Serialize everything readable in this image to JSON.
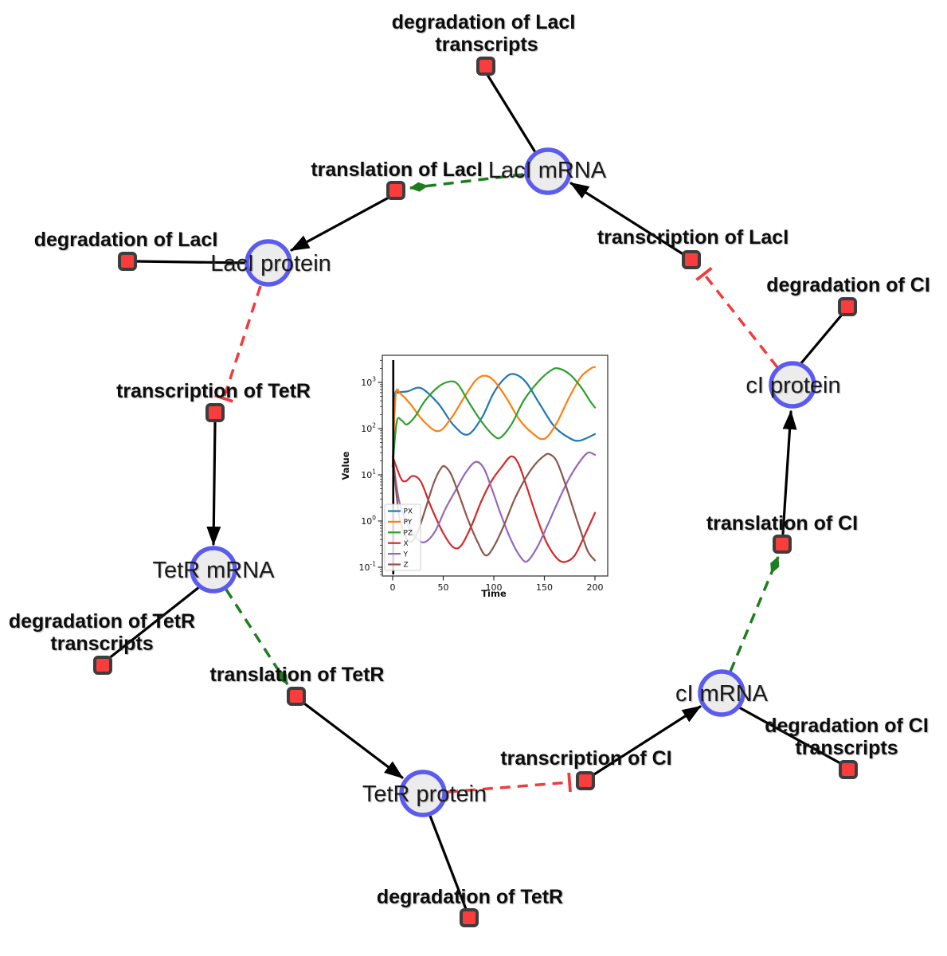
{
  "diagram": {
    "species": [
      {
        "id": "laci-mrna",
        "label": "LacI mRNA"
      },
      {
        "id": "laci-protein",
        "label": "LacI protein"
      },
      {
        "id": "tetr-mrna",
        "label": "TetR mRNA"
      },
      {
        "id": "tetr-protein",
        "label": "TetR protein"
      },
      {
        "id": "ci-mrna",
        "label": "cI mRNA"
      },
      {
        "id": "ci-protein",
        "label": "cI protein"
      }
    ],
    "reactions": [
      {
        "id": "degradation-of-laci-transcripts",
        "line1": "degradation of LacI",
        "line2": "transcripts"
      },
      {
        "id": "translation-of-laci",
        "line1": "translation of LacI"
      },
      {
        "id": "degradation-of-laci",
        "line1": "degradation of LacI"
      },
      {
        "id": "transcription-of-laci",
        "line1": "transcription of LacI"
      },
      {
        "id": "degradation-of-ci",
        "line1": "degradation of CI"
      },
      {
        "id": "transcription-of-tetr",
        "line1": "transcription of TetR"
      },
      {
        "id": "degradation-of-tetr-transcripts",
        "line1": "degradation of TetR",
        "line2": "transcripts"
      },
      {
        "id": "translation-of-tetr",
        "line1": "translation of TetR"
      },
      {
        "id": "degradation-of-tetr",
        "line1": "degradation of TetR"
      },
      {
        "id": "transcription-of-ci",
        "line1": "transcription of CI"
      },
      {
        "id": "degradation-of-ci-transcripts",
        "line1": "degradation of CI",
        "line2": "transcripts"
      },
      {
        "id": "translation-of-ci",
        "line1": "translation of CI"
      }
    ],
    "interactions": [
      {
        "source": "LacI mRNA",
        "target": "degradation of LacI transcripts",
        "type": "reactant-link"
      },
      {
        "source": "LacI mRNA",
        "target": "translation of LacI",
        "type": "modifier"
      },
      {
        "source": "translation of LacI",
        "target": "LacI protein",
        "type": "production"
      },
      {
        "source": "LacI protein",
        "target": "degradation of LacI",
        "type": "reactant-link"
      },
      {
        "source": "LacI protein",
        "target": "transcription of TetR",
        "type": "inhibition"
      },
      {
        "source": "transcription of TetR",
        "target": "TetR mRNA",
        "type": "production"
      },
      {
        "source": "TetR mRNA",
        "target": "degradation of TetR transcripts",
        "type": "reactant-link"
      },
      {
        "source": "TetR mRNA",
        "target": "translation of TetR",
        "type": "modifier"
      },
      {
        "source": "translation of TetR",
        "target": "TetR protein",
        "type": "production"
      },
      {
        "source": "TetR protein",
        "target": "degradation of TetR",
        "type": "reactant-link"
      },
      {
        "source": "TetR protein",
        "target": "transcription of CI",
        "type": "inhibition"
      },
      {
        "source": "transcription of CI",
        "target": "cI mRNA",
        "type": "production"
      },
      {
        "source": "cI mRNA",
        "target": "degradation of CI transcripts",
        "type": "reactant-link"
      },
      {
        "source": "cI mRNA",
        "target": "translation of CI",
        "type": "modifier"
      },
      {
        "source": "translation of CI",
        "target": "cI protein",
        "type": "production"
      },
      {
        "source": "cI protein",
        "target": "degradation of CI",
        "type": "reactant-link"
      },
      {
        "source": "cI protein",
        "target": "transcription of LacI",
        "type": "inhibition"
      },
      {
        "source": "transcription of LacI",
        "target": "LacI mRNA",
        "type": "production"
      }
    ],
    "colors": {
      "species_fill": "#ececec",
      "species_border": "#5b5bf0",
      "reaction_fill": "#fa3c3c",
      "reaction_border": "#3d3d3d",
      "default_edge": "#000000",
      "modifier_edge": "#1e7d1e",
      "inhibition_edge": "#f23b3b"
    }
  },
  "chart_data": {
    "type": "line",
    "title": "",
    "xlabel": "Time",
    "ylabel": "Value",
    "x_range": [
      0,
      200
    ],
    "y_scale": "log",
    "xticks": [
      0,
      50,
      100,
      150,
      200
    ],
    "ytick_exponents": [
      -1,
      0,
      1,
      2,
      3
    ],
    "grid": false,
    "legend_position": "lower left",
    "initial_condition_vline_x": 0.6,
    "series": [
      {
        "name": "PX",
        "color": "#1f77b4",
        "points": [
          [
            0,
            15
          ],
          [
            2,
            450
          ],
          [
            6,
            600
          ],
          [
            15,
            640
          ],
          [
            28,
            750
          ],
          [
            45,
            350
          ],
          [
            60,
            120
          ],
          [
            74,
            74
          ],
          [
            88,
            170
          ],
          [
            100,
            600
          ],
          [
            112,
            1300
          ],
          [
            121,
            1500
          ],
          [
            132,
            1000
          ],
          [
            145,
            350
          ],
          [
            160,
            110
          ],
          [
            175,
            62
          ],
          [
            185,
            55
          ],
          [
            200,
            76
          ]
        ]
      },
      {
        "name": "PY",
        "color": "#ff7f0e",
        "points": [
          [
            0,
            15
          ],
          [
            3,
            520
          ],
          [
            8,
            560
          ],
          [
            18,
            330
          ],
          [
            30,
            150
          ],
          [
            45,
            88
          ],
          [
            58,
            170
          ],
          [
            70,
            450
          ],
          [
            82,
            1100
          ],
          [
            91,
            1400
          ],
          [
            100,
            1100
          ],
          [
            112,
            480
          ],
          [
            125,
            160
          ],
          [
            138,
            80
          ],
          [
            150,
            60
          ],
          [
            162,
            130
          ],
          [
            174,
            450
          ],
          [
            186,
            1300
          ],
          [
            196,
            2000
          ],
          [
            200,
            2150
          ]
        ]
      },
      {
        "name": "PZ",
        "color": "#2ca02c",
        "points": [
          [
            0,
            15
          ],
          [
            4,
            140
          ],
          [
            9,
            150
          ],
          [
            14,
            123
          ],
          [
            22,
            180
          ],
          [
            32,
            400
          ],
          [
            45,
            800
          ],
          [
            57,
            1050
          ],
          [
            65,
            880
          ],
          [
            75,
            380
          ],
          [
            88,
            140
          ],
          [
            100,
            70
          ],
          [
            107,
            65
          ],
          [
            118,
            130
          ],
          [
            130,
            420
          ],
          [
            145,
            1100
          ],
          [
            157,
            1850
          ],
          [
            164,
            2000
          ],
          [
            175,
            1500
          ],
          [
            186,
            800
          ],
          [
            195,
            400
          ],
          [
            200,
            285
          ]
        ]
      },
      {
        "name": "X",
        "color": "#d62728",
        "points": [
          [
            0,
            25
          ],
          [
            8,
            8.5
          ],
          [
            13,
            7.3
          ],
          [
            20,
            9.5
          ],
          [
            28,
            7
          ],
          [
            38,
            2
          ],
          [
            50,
            0.55
          ],
          [
            60,
            0.27
          ],
          [
            68,
            0.3
          ],
          [
            78,
            0.8
          ],
          [
            88,
            2.8
          ],
          [
            98,
            7.5
          ],
          [
            108,
            15
          ],
          [
            117,
            25
          ],
          [
            124,
            18
          ],
          [
            132,
            6
          ],
          [
            142,
            1.3
          ],
          [
            152,
            0.35
          ],
          [
            162,
            0.16
          ],
          [
            170,
            0.13
          ],
          [
            180,
            0.18
          ],
          [
            190,
            0.5
          ],
          [
            200,
            1.5
          ]
        ]
      },
      {
        "name": "Y",
        "color": "#9467bd",
        "points": [
          [
            0,
            25
          ],
          [
            6,
            3
          ],
          [
            14,
            0.9
          ],
          [
            24,
            0.42
          ],
          [
            32,
            0.35
          ],
          [
            42,
            0.6
          ],
          [
            52,
            1.8
          ],
          [
            62,
            4.5
          ],
          [
            72,
            11
          ],
          [
            82,
            19
          ],
          [
            90,
            14
          ],
          [
            98,
            5
          ],
          [
            108,
            1.2
          ],
          [
            118,
            0.35
          ],
          [
            128,
            0.15
          ],
          [
            134,
            0.14
          ],
          [
            144,
            0.3
          ],
          [
            154,
            0.9
          ],
          [
            164,
            2.8
          ],
          [
            174,
            8
          ],
          [
            184,
            18
          ],
          [
            193,
            30
          ],
          [
            200,
            27
          ]
        ]
      },
      {
        "name": "Z",
        "color": "#8c564b",
        "points": [
          [
            0,
            25
          ],
          [
            6,
            1.5
          ],
          [
            12,
            0.5
          ],
          [
            18,
            0.35
          ],
          [
            25,
            0.6
          ],
          [
            33,
            2
          ],
          [
            41,
            7
          ],
          [
            48,
            14
          ],
          [
            52,
            15
          ],
          [
            58,
            10
          ],
          [
            66,
            3.5
          ],
          [
            75,
            1
          ],
          [
            84,
            0.35
          ],
          [
            92,
            0.18
          ],
          [
            100,
            0.28
          ],
          [
            110,
            0.8
          ],
          [
            120,
            2.8
          ],
          [
            130,
            7.5
          ],
          [
            140,
            16
          ],
          [
            150,
            26
          ],
          [
            155,
            28
          ],
          [
            162,
            20
          ],
          [
            170,
            7
          ],
          [
            178,
            2
          ],
          [
            186,
            0.6
          ],
          [
            193,
            0.22
          ],
          [
            200,
            0.14
          ]
        ]
      }
    ]
  }
}
